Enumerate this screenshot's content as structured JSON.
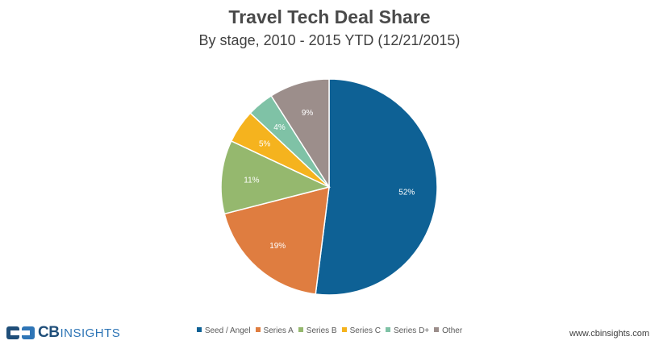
{
  "chart_data": {
    "type": "pie",
    "title": "Travel Tech Deal Share",
    "subtitle": "By stage, 2010 - 2015 YTD (12/21/2015)",
    "slices": [
      {
        "label": "Seed / Angel",
        "value": 52,
        "display": "52%",
        "color": "#0e6195"
      },
      {
        "label": "Series A",
        "value": 19,
        "display": "19%",
        "color": "#df7d40"
      },
      {
        "label": "Series B",
        "value": 11,
        "display": "11%",
        "color": "#95b86e"
      },
      {
        "label": "Series C",
        "value": 5,
        "display": "5%",
        "color": "#f5b31e"
      },
      {
        "label": "Series D+",
        "value": 4,
        "display": "4%",
        "color": "#7fc2a6"
      },
      {
        "label": "Other",
        "value": 9,
        "display": "9%",
        "color": "#9c8e8b"
      }
    ],
    "legend_position": "bottom"
  },
  "branding": {
    "logo_bold": "CB",
    "logo_light": "INSIGHTS",
    "url": "www.cbinsights.com"
  }
}
